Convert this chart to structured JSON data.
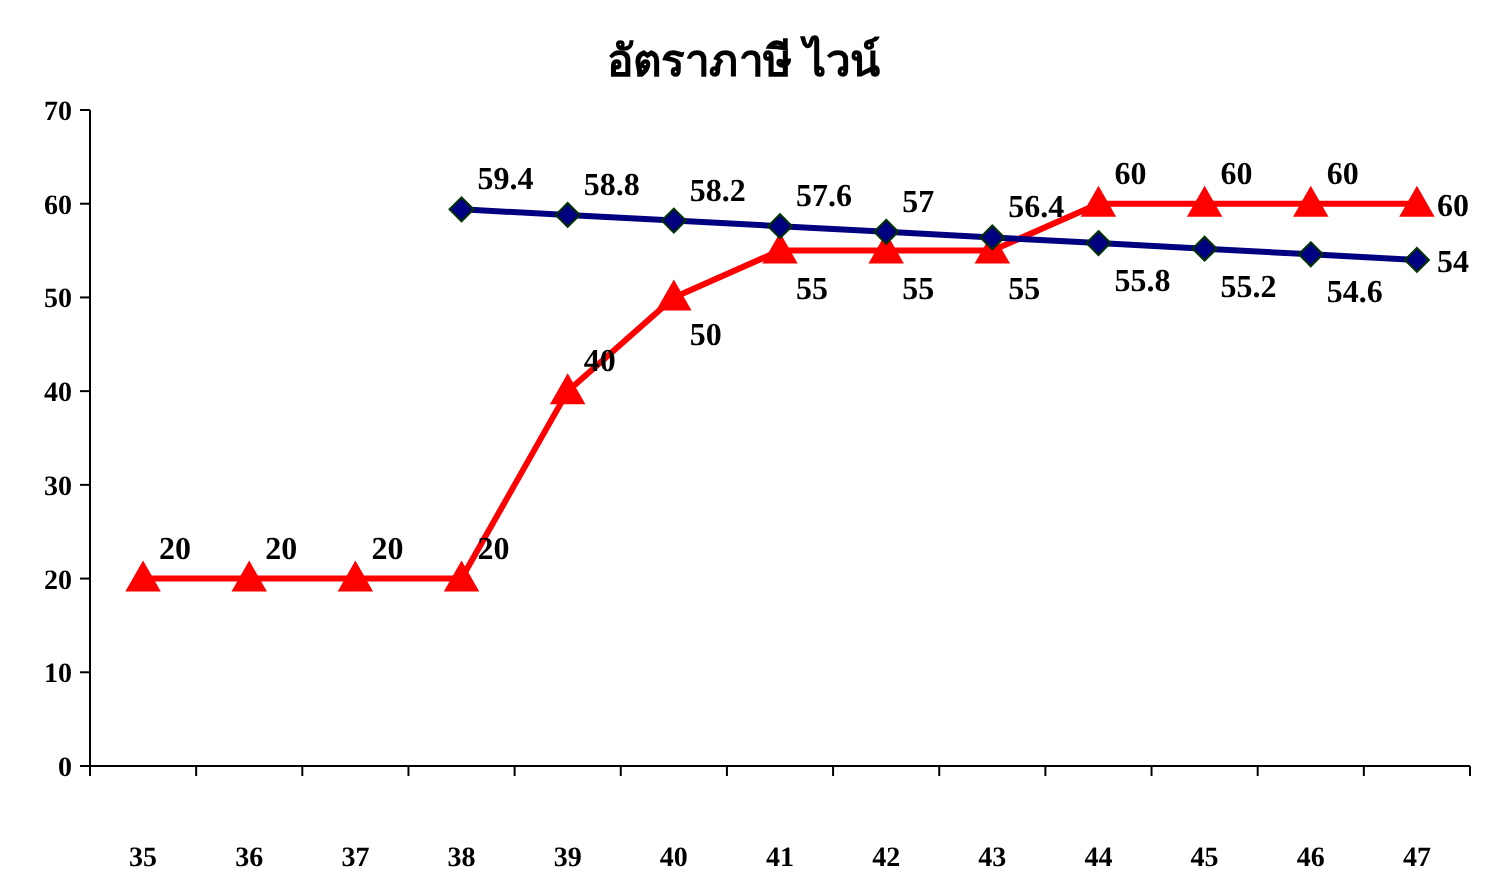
{
  "chart_data": {
    "type": "line",
    "title": "อัตราภาษี ไวน์",
    "categories": [
      "35",
      "36",
      "37",
      "38",
      "39",
      "40",
      "41",
      "42",
      "43",
      "44",
      "45",
      "46",
      "47"
    ],
    "series": [
      {
        "color": "#ff0000",
        "marker": "triangle",
        "values": [
          20,
          20,
          20,
          20,
          40,
          50,
          55,
          55,
          55,
          60,
          60,
          60,
          60
        ]
      },
      {
        "color": "#000080",
        "marker": "diamond",
        "values": [
          null,
          null,
          null,
          59.4,
          58.8,
          58.2,
          57.6,
          57,
          56.4,
          55.8,
          55.2,
          54.6,
          54
        ]
      }
    ],
    "ylim": [
      0,
      70
    ],
    "yticks": [
      0,
      10,
      20,
      30,
      40,
      50,
      60,
      70
    ],
    "grid": false,
    "data_labels": true
  }
}
